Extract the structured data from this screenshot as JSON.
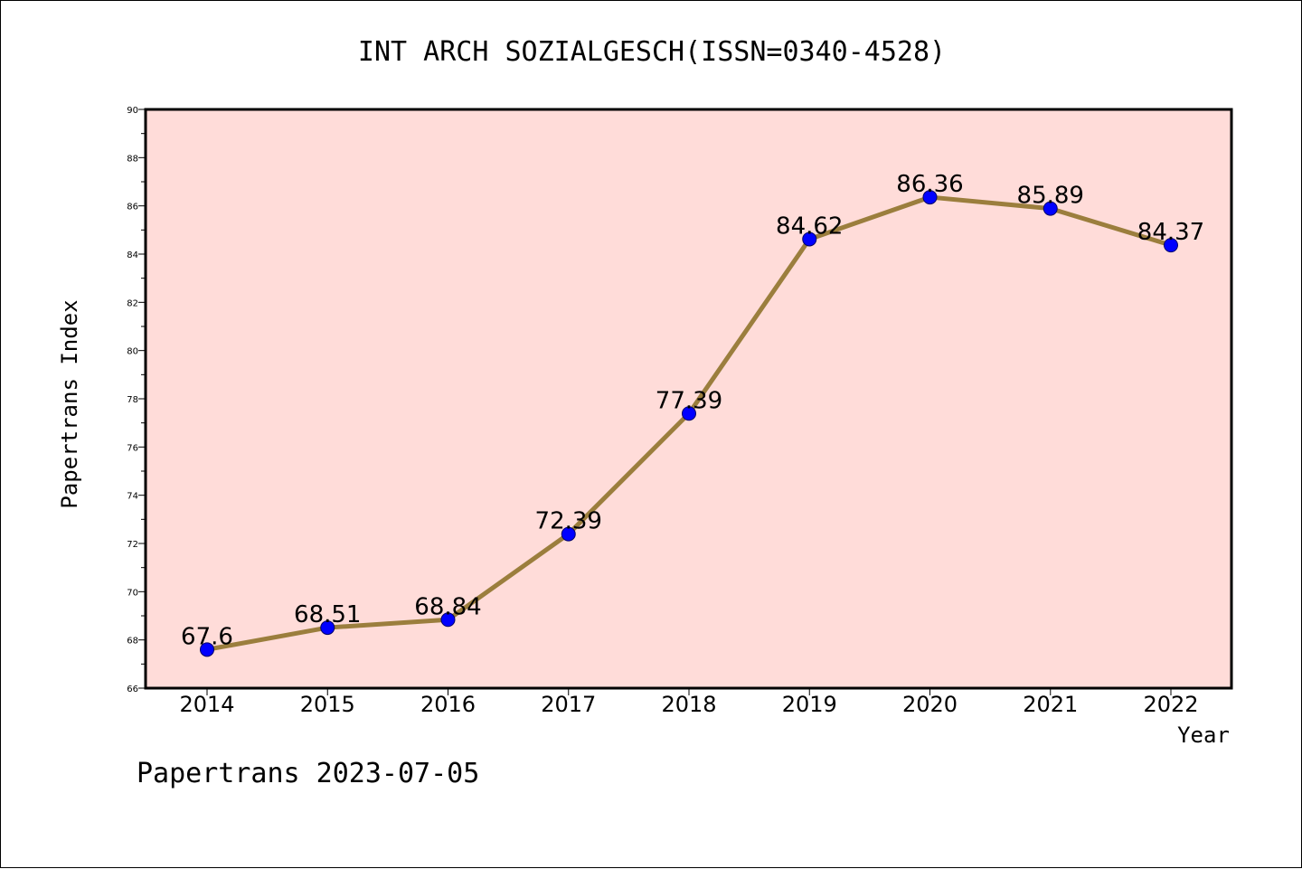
{
  "chart_data": {
    "type": "line",
    "title": "INT ARCH SOZIALGESCH(ISSN=0340-4528)",
    "xlabel": "Year",
    "ylabel": "Papertrans Index",
    "categories": [
      "2014",
      "2015",
      "2016",
      "2017",
      "2018",
      "2019",
      "2020",
      "2021",
      "2022"
    ],
    "values": [
      67.6,
      68.51,
      68.84,
      72.39,
      77.39,
      84.62,
      86.36,
      85.89,
      84.37
    ],
    "data_labels": [
      "67.6",
      "68.51",
      "68.84",
      "72.39",
      "77.39",
      "84.62",
      "86.36",
      "85.89",
      "84.37"
    ],
    "ylim": [
      66,
      90
    ],
    "yticks": [
      66,
      68,
      70,
      72,
      74,
      76,
      78,
      80,
      82,
      84,
      86,
      88,
      90
    ],
    "grid": false,
    "legend": "none",
    "colors": {
      "plot_background": "#ffdcd9",
      "line": "#9b7e3d",
      "marker": "#0000ff",
      "marker_edge": "#00006a"
    }
  },
  "footer": "Papertrans 2023-07-05"
}
